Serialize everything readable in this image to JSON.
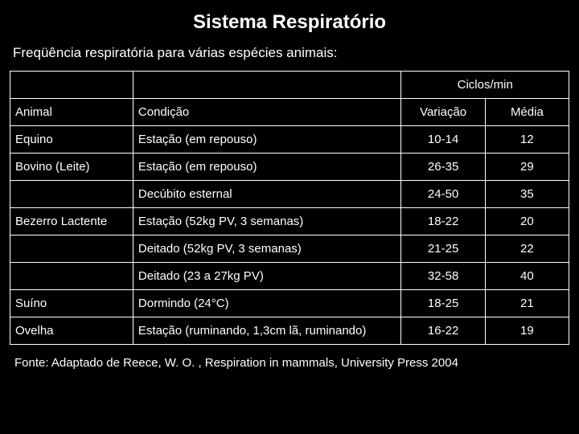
{
  "colors": {
    "background": "#000000",
    "text": "#ffffff",
    "border": "#ffffff"
  },
  "typography": {
    "title_fontsize": 24,
    "subtitle_fontsize": 17,
    "cell_fontsize": 15,
    "source_fontsize": 15,
    "font_family": "Arial"
  },
  "title": "Sistema Respiratório",
  "subtitle": "Freqüência respiratória para várias espécies animais:",
  "table": {
    "section_header": {
      "spanned_label": "Ciclos/min"
    },
    "columns": [
      {
        "key": "animal",
        "label": "Animal",
        "width_pct": 22,
        "align": "left"
      },
      {
        "key": "condicao",
        "label": "Condição",
        "width_pct": 48,
        "align": "left"
      },
      {
        "key": "variacao",
        "label": "Variação",
        "width_pct": 15,
        "align": "center"
      },
      {
        "key": "media",
        "label": "Média",
        "width_pct": 15,
        "align": "center"
      }
    ],
    "rows": [
      {
        "animal": "Equino",
        "condicao": "Estação (em repouso)",
        "variacao": "10-14",
        "media": "12"
      },
      {
        "animal": "Bovino (Leite)",
        "condicao": "Estação (em repouso)",
        "variacao": "26-35",
        "media": "29"
      },
      {
        "animal": "",
        "condicao": "Decúbito esternal",
        "variacao": "24-50",
        "media": "35"
      },
      {
        "animal": "Bezerro Lactente",
        "condicao": "Estação (52kg PV, 3 semanas)",
        "variacao": "18-22",
        "media": "20"
      },
      {
        "animal": "",
        "condicao": "Deitado (52kg PV, 3 semanas)",
        "variacao": "21-25",
        "media": "22"
      },
      {
        "animal": "",
        "condicao": "Deitado (23 a 27kg PV)",
        "variacao": "32-58",
        "media": "40"
      },
      {
        "animal": "Suíno",
        "condicao": "Dormindo (24°C)",
        "variacao": "18-25",
        "media": "21"
      },
      {
        "animal": "Ovelha",
        "condicao": "Estação (ruminando, 1,3cm lã, ruminando)",
        "variacao": "16-22",
        "media": "19"
      }
    ]
  },
  "source": "Fonte: Adaptado de Reece, W. O. , Respiration in mammals, University Press 2004"
}
